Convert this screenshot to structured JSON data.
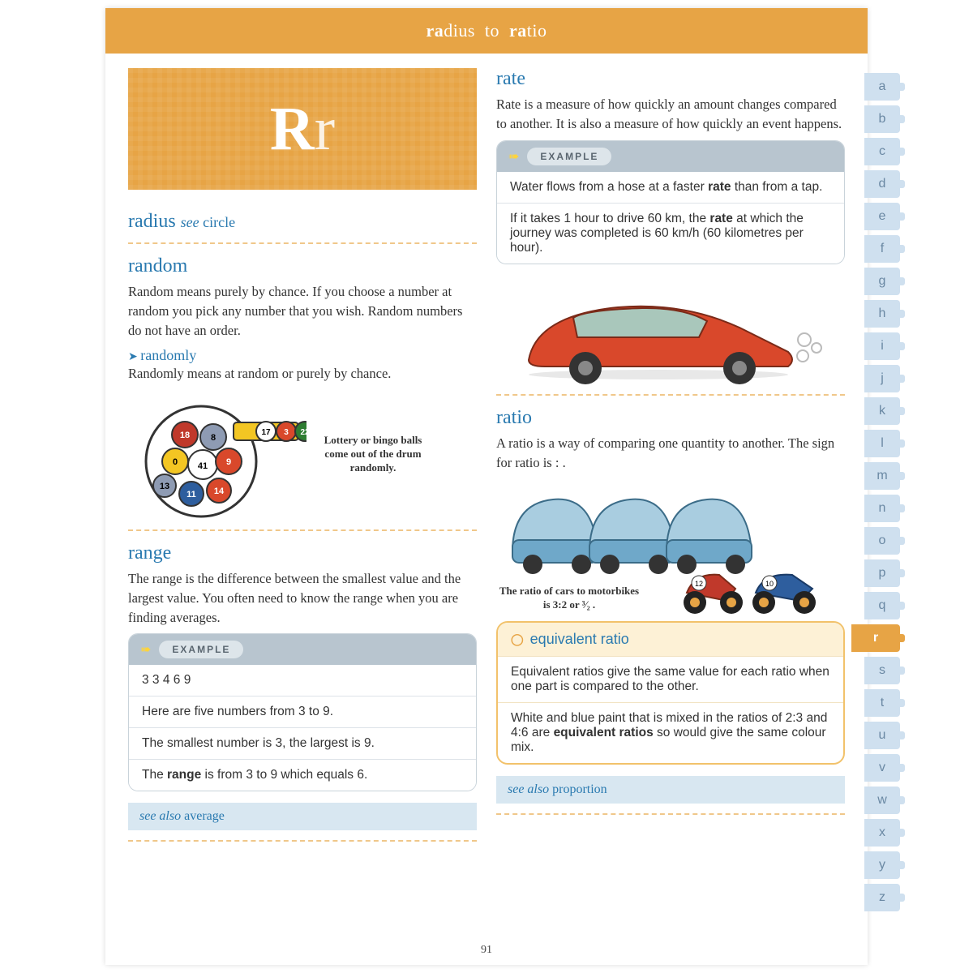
{
  "header": {
    "from": "ra",
    "word1_rest": "dius",
    "to": "to",
    "word2_bold": "ra",
    "word2_rest": "tio"
  },
  "letterbox": {
    "upper": "R",
    "lower": "r"
  },
  "page_number": "91",
  "tabs": {
    "letters": [
      "a",
      "b",
      "c",
      "d",
      "e",
      "f",
      "g",
      "h",
      "i",
      "j",
      "k",
      "l",
      "m",
      "n",
      "o",
      "p",
      "q",
      "r",
      "s",
      "t",
      "u",
      "v",
      "w",
      "x",
      "y",
      "z"
    ],
    "active": "r"
  },
  "left": {
    "radius": {
      "title": "radius",
      "see_label": "see",
      "see_target": "circle"
    },
    "random": {
      "title": "random",
      "body": "Random means purely by chance. If you choose a number at random you pick any number that you wish. Random numbers do not have an order.",
      "sub_title": "randomly",
      "sub_body": "Randomly means at random or purely by chance.",
      "caption": "Lottery or bingo balls come out of the drum randomly."
    },
    "range": {
      "title": "range",
      "body": "The range is the difference between the smallest value and the largest value. You often need to know the range when you are finding averages.",
      "example_label": "EXAMPLE",
      "rows": [
        "3  3  4  6  9",
        "Here are five numbers from 3 to 9.",
        "The smallest number is 3, the largest is 9.",
        "The <b>range</b> is from 3 to 9 which equals 6."
      ],
      "seealso_label": "see also",
      "seealso_target": "average"
    }
  },
  "right": {
    "rate": {
      "title": "rate",
      "body": "Rate is a measure of how quickly an amount changes compared to another. It is also a measure of how quickly an event happens.",
      "example_label": "EXAMPLE",
      "rows": [
        "Water flows from a hose at a faster <b>rate</b> than from a tap.",
        "If it takes 1 hour to drive 60 km, the <b>rate</b> at which the journey was completed is 60 km/h (60 kilometres per hour)."
      ]
    },
    "ratio": {
      "title": "ratio",
      "body": "A ratio is a way of comparing one quantity to another. The sign for ratio is : .",
      "caption": "The ratio of cars to motorbikes is 3:2 or ³⁄₂ .",
      "sub_title": "equivalent ratio",
      "sub_rows": [
        "Equivalent ratios give the same value for each ratio when one part is compared to the other.",
        "White and blue paint that is mixed in the ratios of 2:3 and 4:6 are <b>equivalent ratios</b> so would give the same colour mix."
      ],
      "seealso_label": "see also",
      "seealso_target": "proportion"
    }
  },
  "colors": {
    "accent": "#e7a445",
    "blue": "#2a7ab0",
    "tab_bg": "#cfe0ef",
    "car_red": "#d9482b",
    "car_blue": "#6fa8c9",
    "bike_red": "#c0392b",
    "bike_blue": "#2e5e9e"
  }
}
